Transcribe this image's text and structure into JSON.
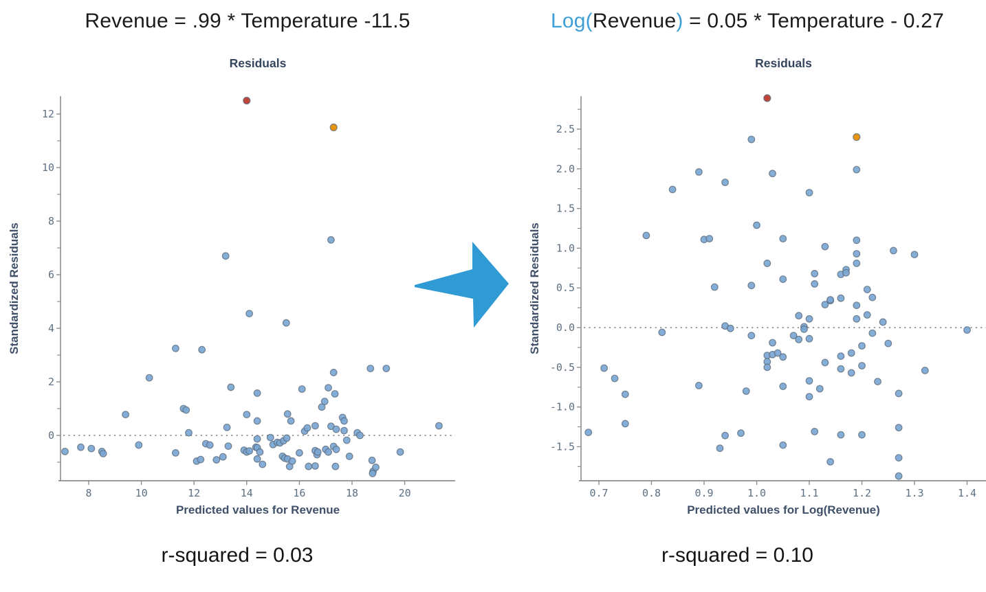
{
  "page": {
    "background": "#ffffff",
    "right_equation": {
      "log_part": "Log(",
      "var_part": "Revenue",
      "close_part": ")",
      "rest": " = 0.05 * Temperature - 0.27",
      "full": "Log(Revenue) = 0.05 * Temperature - 0.27",
      "accent_color": "#3d9fd6"
    },
    "arrow": {
      "color": "#2f9ad3",
      "direction": "right"
    }
  },
  "chart_data": [
    {
      "type": "scatter",
      "title": "Residuals",
      "equation": "Revenue = .99 * Temperature -11.5",
      "r_squared": 0.03,
      "r_squared_label": "r-squared = 0.03",
      "xlabel": "Predicted values for Revenue",
      "ylabel": "Standardized Residuals",
      "xlim": [
        6.9,
        21.9
      ],
      "ylim": [
        -1.7,
        12.7
      ],
      "grid": false,
      "zero_line_y": 0,
      "zero_line_style": "dotted",
      "x_ticks": [
        8,
        10,
        12,
        14,
        16,
        18,
        20
      ],
      "x_tick_labels": [
        "8",
        "10",
        "12",
        "14",
        "16",
        "18",
        "20"
      ],
      "y_ticks": [
        0,
        2,
        4,
        6,
        8,
        10,
        12
      ],
      "y_tick_labels": [
        "0",
        "2",
        "4",
        "6",
        "8",
        "10",
        "12"
      ],
      "y_minor_ticks": [
        -1,
        1,
        3,
        5,
        7,
        9,
        11
      ],
      "point_color": "#7aa6d4",
      "point_edge_color": "#5d6b7a",
      "outliers": [
        {
          "x": 14.0,
          "y": 12.5,
          "color": "#c2453a",
          "name": "red-outlier"
        },
        {
          "x": 17.3,
          "y": 11.5,
          "color": "#e79410",
          "name": "orange-outlier"
        }
      ],
      "points": [
        [
          7.1,
          -0.6
        ],
        [
          7.7,
          -0.44
        ],
        [
          8.1,
          -0.49
        ],
        [
          8.5,
          -0.6
        ],
        [
          8.55,
          -0.68
        ],
        [
          9.4,
          0.78
        ],
        [
          9.9,
          -0.36
        ],
        [
          10.3,
          2.15
        ],
        [
          11.3,
          3.25
        ],
        [
          11.3,
          -0.65
        ],
        [
          11.6,
          1.0
        ],
        [
          11.7,
          0.95
        ],
        [
          11.8,
          0.1
        ],
        [
          12.3,
          3.2
        ],
        [
          12.1,
          -0.96
        ],
        [
          12.25,
          -0.9
        ],
        [
          12.45,
          -0.31
        ],
        [
          12.6,
          -0.36
        ],
        [
          12.85,
          -0.91
        ],
        [
          13.1,
          -0.8
        ],
        [
          13.2,
          6.7
        ],
        [
          13.25,
          0.3
        ],
        [
          13.3,
          -0.4
        ],
        [
          13.4,
          1.8
        ],
        [
          13.9,
          -0.55
        ],
        [
          14.0,
          0.78
        ],
        [
          14.0,
          -0.62
        ],
        [
          14.1,
          4.55
        ],
        [
          14.1,
          -0.58
        ],
        [
          14.35,
          -0.44
        ],
        [
          14.4,
          1.58
        ],
        [
          14.4,
          0.54
        ],
        [
          14.4,
          -0.13
        ],
        [
          14.4,
          -0.46
        ],
        [
          14.5,
          -0.62
        ],
        [
          14.4,
          -0.88
        ],
        [
          14.6,
          -1.08
        ],
        [
          14.9,
          -0.08
        ],
        [
          15.0,
          -0.34
        ],
        [
          15.16,
          -0.26
        ],
        [
          15.26,
          -0.28
        ],
        [
          15.4,
          -0.2
        ],
        [
          15.5,
          4.2
        ],
        [
          15.52,
          -0.1
        ],
        [
          15.36,
          -0.78
        ],
        [
          15.44,
          -0.85
        ],
        [
          15.55,
          0.8
        ],
        [
          15.55,
          -0.88
        ],
        [
          15.63,
          -1.16
        ],
        [
          15.68,
          0.54
        ],
        [
          15.73,
          -0.96
        ],
        [
          16.0,
          -0.65
        ],
        [
          16.1,
          1.73
        ],
        [
          16.2,
          0.16
        ],
        [
          16.3,
          0.28
        ],
        [
          16.35,
          -1.16
        ],
        [
          16.6,
          0.36
        ],
        [
          16.6,
          -0.57
        ],
        [
          16.6,
          -1.14
        ],
        [
          16.67,
          -0.72
        ],
        [
          16.7,
          -0.62
        ],
        [
          16.85,
          1.06
        ],
        [
          16.96,
          1.27
        ],
        [
          17.0,
          -0.52
        ],
        [
          17.1,
          1.78
        ],
        [
          17.1,
          -0.62
        ],
        [
          17.2,
          7.3
        ],
        [
          17.2,
          0.34
        ],
        [
          17.3,
          2.35
        ],
        [
          17.3,
          -0.41
        ],
        [
          17.35,
          1.55
        ],
        [
          17.37,
          -1.16
        ],
        [
          17.4,
          0.23
        ],
        [
          17.4,
          -0.52
        ],
        [
          17.64,
          0.67
        ],
        [
          17.7,
          0.54
        ],
        [
          17.7,
          0.18
        ],
        [
          17.8,
          -0.18
        ],
        [
          17.9,
          -0.78
        ],
        [
          18.2,
          0.1
        ],
        [
          18.3,
          0.0
        ],
        [
          18.7,
          2.5
        ],
        [
          18.76,
          -0.93
        ],
        [
          18.8,
          -1.34
        ],
        [
          18.78,
          -1.42
        ],
        [
          18.9,
          -1.19
        ],
        [
          19.3,
          2.5
        ],
        [
          19.83,
          -0.62
        ],
        [
          21.3,
          0.36
        ]
      ]
    },
    {
      "type": "scatter",
      "title": "Residuals",
      "equation": "Log(Revenue) = 0.05 * Temperature - 0.27",
      "r_squared": 0.1,
      "r_squared_label": "r-squared = 0.10",
      "xlabel": "Predicted values for Log(Revenue)",
      "ylabel": "Standardized Residuals",
      "xlim": [
        0.66,
        1.44
      ],
      "ylim": [
        -1.95,
        2.92
      ],
      "grid": false,
      "zero_line_y": 0,
      "zero_line_style": "dotted",
      "x_ticks": [
        0.7,
        0.8,
        0.9,
        1.0,
        1.1,
        1.2,
        1.3,
        1.4
      ],
      "x_tick_labels": [
        "0.7",
        "0.8",
        "0.9",
        "1.0",
        "1.1",
        "1.2",
        "1.3",
        "1.4"
      ],
      "y_ticks": [
        -1.5,
        -1.0,
        -0.5,
        0.0,
        0.5,
        1.0,
        1.5,
        2.0,
        2.5
      ],
      "y_tick_labels": [
        "-1.5",
        "-1.0",
        "-0.5",
        "0.0",
        "0.5",
        "1.0",
        "1.5",
        "2.0",
        "2.5"
      ],
      "y_minor_ticks": [
        -1.75,
        -1.25,
        -0.75,
        -0.25,
        0.25,
        0.75,
        1.25,
        1.75,
        2.25,
        2.75
      ],
      "point_color": "#7aa6d4",
      "point_edge_color": "#5d6b7a",
      "outliers": [
        {
          "x": 1.02,
          "y": 2.89,
          "color": "#c2453a",
          "name": "red-outlier"
        },
        {
          "x": 1.19,
          "y": 2.4,
          "color": "#e79410",
          "name": "orange-outlier"
        }
      ],
      "points": [
        [
          0.68,
          -1.32
        ],
        [
          0.71,
          -0.51
        ],
        [
          0.73,
          -0.64
        ],
        [
          0.75,
          -0.84
        ],
        [
          0.75,
          -1.21
        ],
        [
          0.79,
          1.16
        ],
        [
          0.82,
          -0.06
        ],
        [
          0.84,
          1.74
        ],
        [
          0.89,
          1.96
        ],
        [
          0.89,
          -0.73
        ],
        [
          0.9,
          1.11
        ],
        [
          0.91,
          1.12
        ],
        [
          0.92,
          0.51
        ],
        [
          0.93,
          -1.52
        ],
        [
          0.94,
          1.83
        ],
        [
          0.94,
          0.02
        ],
        [
          0.94,
          -1.36
        ],
        [
          0.95,
          -0.01
        ],
        [
          0.97,
          -1.33
        ],
        [
          0.98,
          -0.8
        ],
        [
          0.99,
          2.37
        ],
        [
          0.99,
          0.53
        ],
        [
          0.99,
          -0.1
        ],
        [
          1.0,
          1.29
        ],
        [
          1.02,
          0.81
        ],
        [
          1.02,
          -0.35
        ],
        [
          1.02,
          -0.43
        ],
        [
          1.02,
          -0.5
        ],
        [
          1.03,
          1.94
        ],
        [
          1.03,
          -0.19
        ],
        [
          1.03,
          -0.34
        ],
        [
          1.04,
          -0.32
        ],
        [
          1.05,
          1.12
        ],
        [
          1.05,
          0.61
        ],
        [
          1.05,
          -0.37
        ],
        [
          1.05,
          -0.74
        ],
        [
          1.05,
          -1.48
        ],
        [
          1.07,
          -0.1
        ],
        [
          1.08,
          0.15
        ],
        [
          1.08,
          -0.15
        ],
        [
          1.09,
          0.01
        ],
        [
          1.09,
          -0.02
        ],
        [
          1.1,
          1.7
        ],
        [
          1.1,
          0.11
        ],
        [
          1.1,
          -0.14
        ],
        [
          1.1,
          -0.67
        ],
        [
          1.1,
          -0.87
        ],
        [
          1.11,
          0.68
        ],
        [
          1.11,
          0.55
        ],
        [
          1.11,
          -1.31
        ],
        [
          1.12,
          -0.77
        ],
        [
          1.13,
          1.02
        ],
        [
          1.13,
          0.29
        ],
        [
          1.13,
          -0.44
        ],
        [
          1.14,
          0.34
        ],
        [
          1.14,
          0.35
        ],
        [
          1.14,
          -1.69
        ],
        [
          1.16,
          0.67
        ],
        [
          1.16,
          0.37
        ],
        [
          1.16,
          -0.36
        ],
        [
          1.16,
          -0.52
        ],
        [
          1.16,
          -1.35
        ],
        [
          1.17,
          0.73
        ],
        [
          1.17,
          0.69
        ],
        [
          1.18,
          -0.32
        ],
        [
          1.18,
          -0.57
        ],
        [
          1.19,
          1.99
        ],
        [
          1.19,
          1.1
        ],
        [
          1.19,
          0.93
        ],
        [
          1.19,
          0.81
        ],
        [
          1.19,
          0.28
        ],
        [
          1.19,
          0.11
        ],
        [
          1.2,
          -0.23
        ],
        [
          1.2,
          -0.48
        ],
        [
          1.2,
          -1.35
        ],
        [
          1.21,
          0.48
        ],
        [
          1.21,
          0.16
        ],
        [
          1.22,
          0.38
        ],
        [
          1.22,
          -0.07
        ],
        [
          1.23,
          -0.68
        ],
        [
          1.24,
          0.07
        ],
        [
          1.25,
          -0.2
        ],
        [
          1.26,
          0.97
        ],
        [
          1.27,
          -0.83
        ],
        [
          1.27,
          -1.26
        ],
        [
          1.27,
          -1.64
        ],
        [
          1.27,
          -1.87
        ],
        [
          1.3,
          0.92
        ],
        [
          1.32,
          -0.54
        ],
        [
          1.4,
          -0.03
        ]
      ]
    }
  ]
}
